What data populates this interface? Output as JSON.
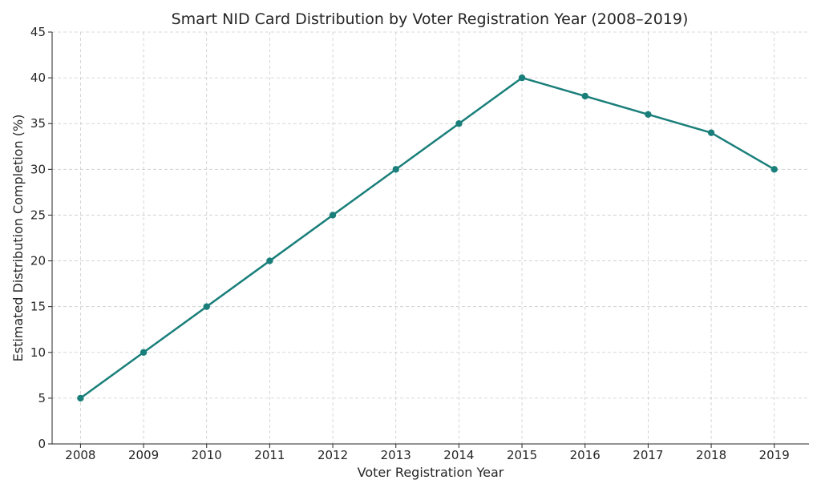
{
  "chart_data": {
    "type": "line",
    "title": "Smart NID Card Distribution by Voter Registration Year (2008–2019)",
    "xlabel": "Voter Registration Year",
    "ylabel": "Estimated Distribution Completion (%)",
    "x": [
      2008,
      2009,
      2010,
      2011,
      2012,
      2013,
      2014,
      2015,
      2016,
      2017,
      2018,
      2019
    ],
    "x_tick_labels": [
      "2008",
      "2009",
      "2010",
      "2011",
      "2012",
      "2013",
      "2014",
      "2015",
      "2016",
      "2017",
      "2018",
      "2019"
    ],
    "series": [
      {
        "values": [
          5,
          10,
          15,
          20,
          25,
          30,
          35,
          40,
          38,
          36,
          34,
          30
        ],
        "color": "#1a7f7a"
      }
    ],
    "ylim": [
      0,
      45
    ],
    "y_ticks": [
      0,
      5,
      10,
      15,
      20,
      25,
      30,
      35,
      40,
      45
    ],
    "grid": true,
    "legend": "none",
    "markers": true
  }
}
